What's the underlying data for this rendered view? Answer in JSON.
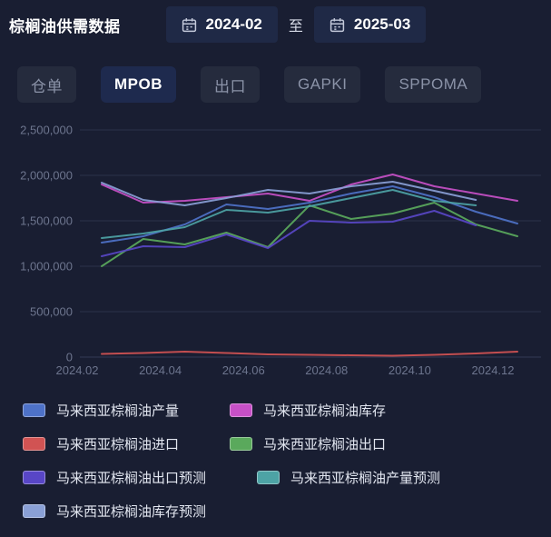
{
  "header": {
    "title": "棕榈油供需数据",
    "date_start": "2024-02",
    "date_separator": "至",
    "date_end": "2025-03"
  },
  "tabs": [
    {
      "key": "warehouse-receipt",
      "label": "仓单",
      "active": false
    },
    {
      "key": "mpob",
      "label": "MPOB",
      "active": true
    },
    {
      "key": "export",
      "label": "出口",
      "active": false
    },
    {
      "key": "gapki",
      "label": "GAPKI",
      "active": false
    },
    {
      "key": "sppoma",
      "label": "SPPOMA",
      "active": false
    }
  ],
  "colors": {
    "background": "#191e32",
    "panel": "#252b3d",
    "active_tab": "#1e2a4e",
    "date_button": "#1f2946",
    "gridline": "#2b3149",
    "zero_line": "#343b55",
    "axis_text": "#6d758e"
  },
  "chart_data": {
    "type": "line",
    "x": [
      "2024.02",
      "2024.03",
      "2024.04",
      "2024.05",
      "2024.06",
      "2024.07",
      "2024.08",
      "2024.09",
      "2024.10",
      "2024.11",
      "2024.12"
    ],
    "x_tick_labels": [
      "2024.02",
      "2024.04",
      "2024.06",
      "2024.08",
      "2024.10",
      "2024.12"
    ],
    "ylim": [
      0,
      2500000
    ],
    "y_ticks": [
      {
        "value": 0,
        "label": "0"
      },
      {
        "value": 500000,
        "label": "500,000"
      },
      {
        "value": 1000000,
        "label": "1,000,000"
      },
      {
        "value": 1500000,
        "label": "1,500,000"
      },
      {
        "value": 2000000,
        "label": "2,000,000"
      },
      {
        "value": 2500000,
        "label": "2,500,000"
      }
    ],
    "grid": true,
    "legend_position": "bottom-left",
    "series": [
      {
        "key": "production",
        "name": "马来西亚棕榈油产量",
        "color": "#4e72c8",
        "values": [
          1260000,
          1330000,
          1460000,
          1680000,
          1630000,
          1700000,
          1800000,
          1880000,
          1760000,
          1600000,
          1470000
        ]
      },
      {
        "key": "inventory",
        "name": "马来西亚棕榈油库存",
        "color": "#c750c7",
        "values": [
          1900000,
          1700000,
          1720000,
          1760000,
          1800000,
          1720000,
          1900000,
          2010000,
          1880000,
          1800000,
          1720000
        ]
      },
      {
        "key": "import",
        "name": "马来西亚棕榈油进口",
        "color": "#d15353",
        "values": [
          35000,
          45000,
          60000,
          45000,
          30000,
          25000,
          20000,
          15000,
          25000,
          40000,
          60000
        ]
      },
      {
        "key": "export",
        "name": "马来西亚棕榈油出口",
        "color": "#5aa95c",
        "values": [
          1000000,
          1300000,
          1240000,
          1370000,
          1210000,
          1670000,
          1520000,
          1580000,
          1700000,
          1460000,
          1330000
        ]
      },
      {
        "key": "export-forecast",
        "name": "马来西亚棕榈油出口预测",
        "color": "#5846c6",
        "values": [
          1110000,
          1220000,
          1210000,
          1350000,
          1200000,
          1500000,
          1480000,
          1490000,
          1610000,
          1450000
        ]
      },
      {
        "key": "production-forecast",
        "name": "马来西亚棕榈油产量预测",
        "color": "#4da3a5",
        "values": [
          1310000,
          1360000,
          1430000,
          1620000,
          1590000,
          1660000,
          1750000,
          1840000,
          1720000,
          1670000
        ]
      },
      {
        "key": "inventory-forecast",
        "name": "马来西亚棕榈油库存预测",
        "color": "#8aa0d6",
        "values": [
          1920000,
          1730000,
          1670000,
          1750000,
          1840000,
          1800000,
          1880000,
          1930000,
          1830000,
          1730000
        ]
      }
    ]
  }
}
